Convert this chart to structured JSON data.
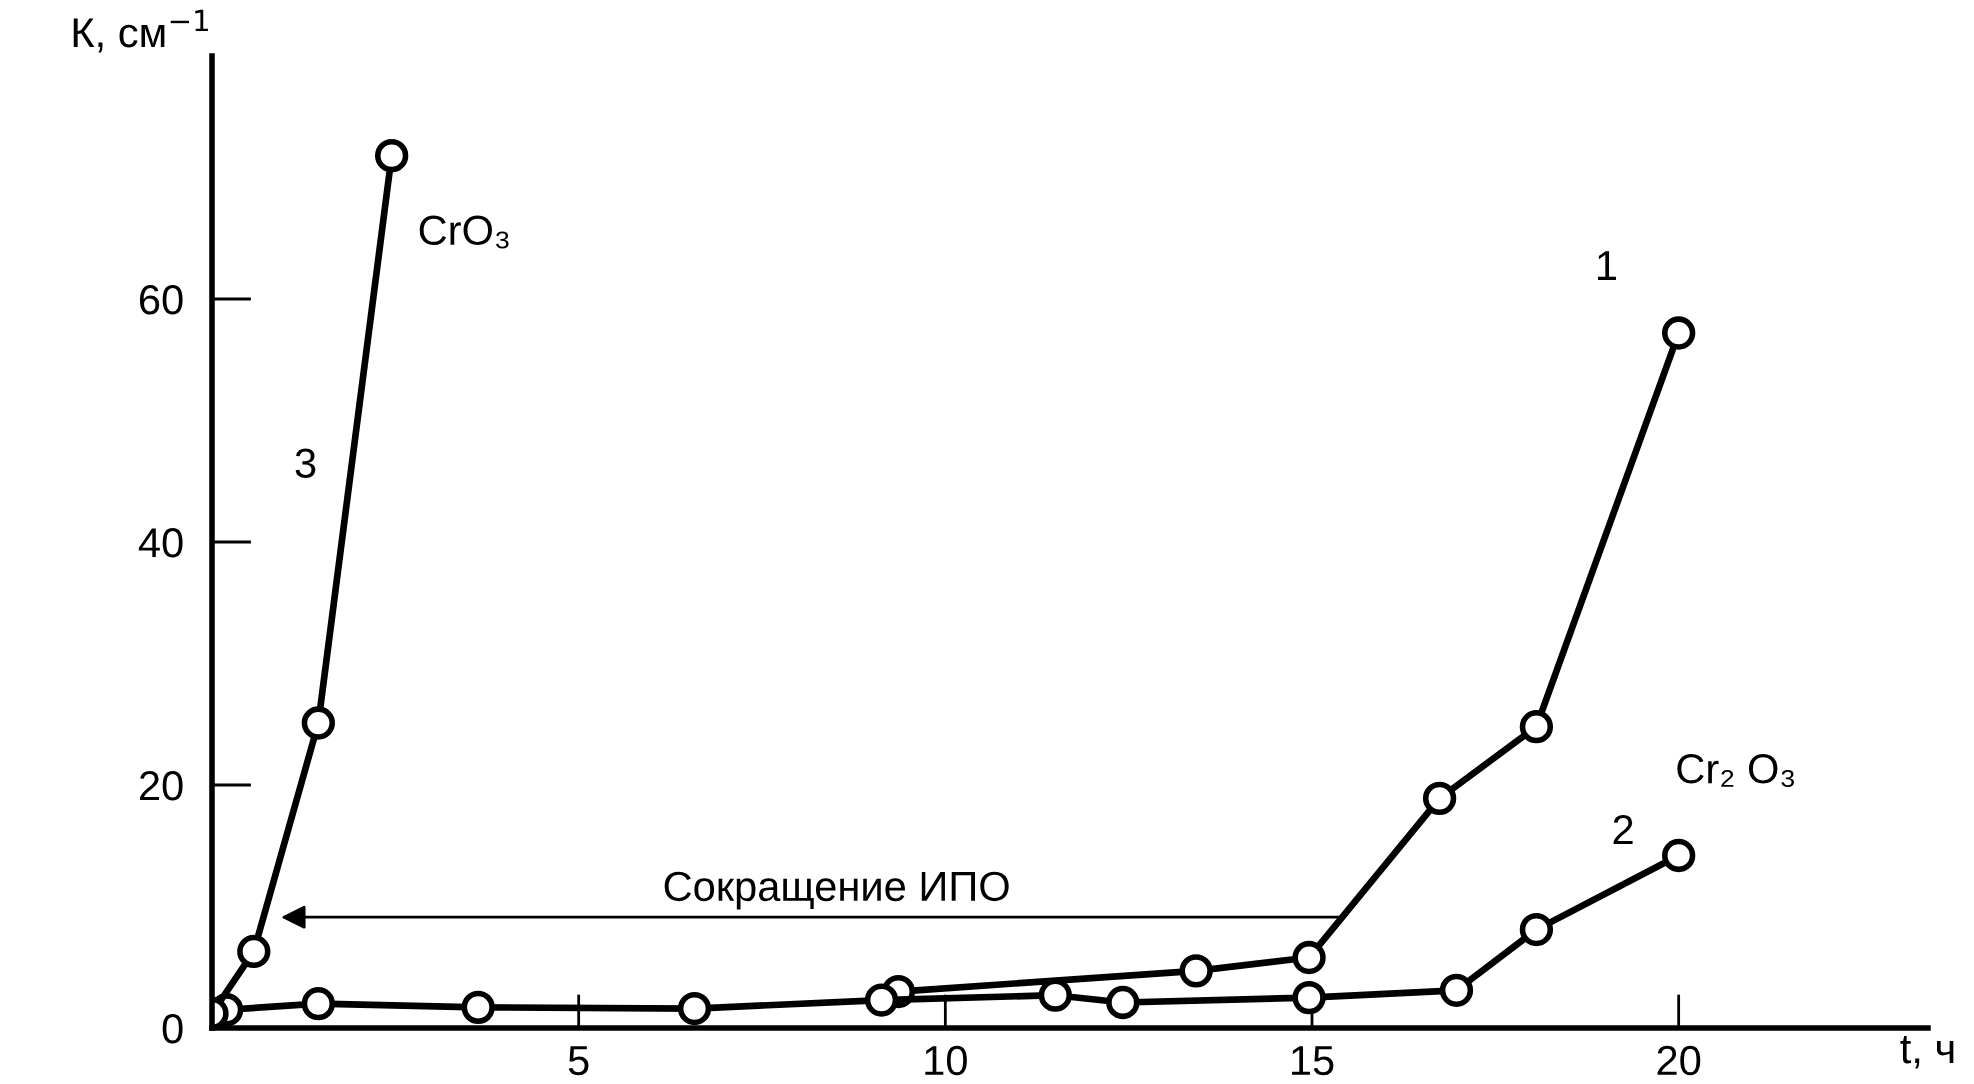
{
  "chart_data": {
    "type": "line",
    "xlabel": "t, ч",
    "ylabel": "К, см$^{−1}$",
    "series": [
      {
        "name": "1",
        "color": "#000000",
        "x": [
          9.36,
          13.42,
          14.96,
          16.74,
          18.06,
          20.0
        ],
        "values": [
          3.0,
          4.7,
          5.8,
          18.9,
          24.8,
          57.2
        ]
      },
      {
        "name": "2",
        "color": "#000000",
        "x": [
          0.2,
          1.45,
          3.63,
          6.58,
          9.13,
          11.5,
          12.42,
          14.96,
          16.97,
          18.06,
          20.0
        ],
        "values": [
          1.5,
          2.0,
          1.7,
          1.6,
          2.3,
          2.7,
          2.1,
          2.5,
          3.1,
          8.1,
          14.2
        ]
      },
      {
        "name": "3",
        "color": "#000000",
        "x": [
          0.0,
          0.57,
          1.45,
          2.45
        ],
        "values": [
          1.2,
          6.3,
          25.1,
          71.8
        ]
      }
    ],
    "xlim": [
      0,
      23.4
    ],
    "xticks": [
      5,
      10,
      15,
      20
    ],
    "ylim": [
      0,
      80
    ],
    "yticks": [
      0,
      20,
      40,
      60
    ],
    "grid": false,
    "legend": false,
    "marker": "circle",
    "line_style": "solid",
    "annotations": [
      "Сокращение ИПО",
      "CrO₃",
      "Cr₂ O₃"
    ]
  }
}
